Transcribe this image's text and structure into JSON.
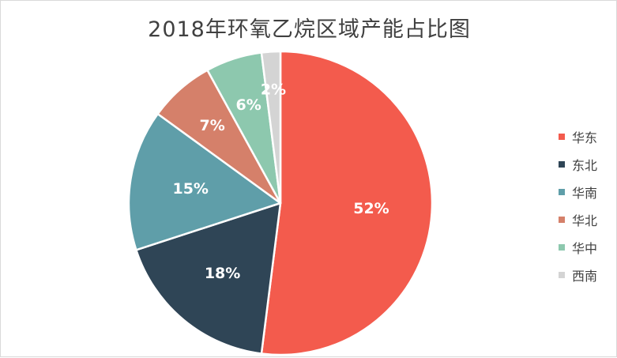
{
  "chart_data": {
    "type": "pie",
    "title": "2018年环氧乙烷区域产能占比图",
    "start_angle_deg": 0,
    "direction": "clockwise",
    "legend_position": "right",
    "slices": [
      {
        "label": "华东",
        "value": 52,
        "display": "52%",
        "color": "#F35B4D"
      },
      {
        "label": "东北",
        "value": 18,
        "display": "18%",
        "color": "#2F4556"
      },
      {
        "label": "华南",
        "value": 15,
        "display": "15%",
        "color": "#5F9EA9"
      },
      {
        "label": "华北",
        "value": 7,
        "display": "7%",
        "color": "#D5806A"
      },
      {
        "label": "华中",
        "value": 6,
        "display": "6%",
        "color": "#8DC8AE"
      },
      {
        "label": "西南",
        "value": 2,
        "display": "2%",
        "color": "#D4D4D4"
      }
    ]
  }
}
